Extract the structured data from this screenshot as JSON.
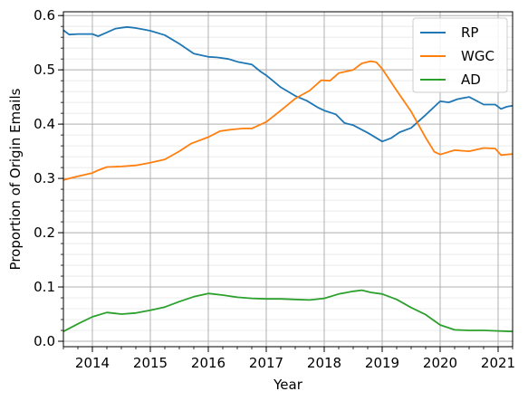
{
  "chart_data": {
    "type": "line",
    "xlabel": "Year",
    "ylabel": "Proportion of Origin Emails",
    "xlim": [
      2013.5,
      2021.25
    ],
    "ylim": [
      -0.01,
      0.607
    ],
    "x_ticks": [
      2014,
      2015,
      2016,
      2017,
      2018,
      2019,
      2020,
      2021
    ],
    "x_tick_labels": [
      "2014",
      "2015",
      "2016",
      "2017",
      "2018",
      "2019",
      "2020",
      "2021"
    ],
    "y_ticks": [
      0.0,
      0.1,
      0.2,
      0.3,
      0.4,
      0.5,
      0.6
    ],
    "y_tick_labels": [
      "0.0",
      "0.1",
      "0.2",
      "0.3",
      "0.4",
      "0.5",
      "0.6"
    ],
    "grid": "major and minor",
    "legend_position": "top-right",
    "series": [
      {
        "name": "RP",
        "color": "#1f77b4",
        "x": [
          2013.5,
          2013.6,
          2013.75,
          2014.0,
          2014.1,
          2014.25,
          2014.4,
          2014.6,
          2014.75,
          2014.9,
          2015.0,
          2015.25,
          2015.5,
          2015.75,
          2016.0,
          2016.15,
          2016.35,
          2016.5,
          2016.75,
          2016.9,
          2017.0,
          2017.25,
          2017.5,
          2017.7,
          2017.9,
          2018.0,
          2018.2,
          2018.35,
          2018.5,
          2018.75,
          2019.0,
          2019.15,
          2019.3,
          2019.5,
          2019.75,
          2020.0,
          2020.15,
          2020.3,
          2020.5,
          2020.75,
          2020.95,
          2021.05,
          2021.15,
          2021.25
        ],
        "y": [
          0.573,
          0.565,
          0.566,
          0.566,
          0.562,
          0.569,
          0.576,
          0.579,
          0.577,
          0.574,
          0.572,
          0.564,
          0.548,
          0.53,
          0.524,
          0.523,
          0.52,
          0.515,
          0.51,
          0.497,
          0.49,
          0.468,
          0.452,
          0.443,
          0.43,
          0.425,
          0.418,
          0.402,
          0.398,
          0.384,
          0.368,
          0.374,
          0.385,
          0.393,
          0.417,
          0.442,
          0.44,
          0.446,
          0.45,
          0.436,
          0.436,
          0.428,
          0.432,
          0.434
        ]
      },
      {
        "name": "WGC",
        "color": "#ff7f0e",
        "x": [
          2013.5,
          2013.6,
          2013.75,
          2014.0,
          2014.1,
          2014.25,
          2014.5,
          2014.75,
          2015.0,
          2015.25,
          2015.5,
          2015.7,
          2016.0,
          2016.2,
          2016.4,
          2016.6,
          2016.75,
          2017.0,
          2017.25,
          2017.5,
          2017.75,
          2017.95,
          2018.1,
          2018.25,
          2018.5,
          2018.65,
          2018.8,
          2018.9,
          2019.0,
          2019.25,
          2019.5,
          2019.75,
          2019.9,
          2020.0,
          2020.25,
          2020.5,
          2020.75,
          2020.95,
          2021.05,
          2021.25
        ],
        "y": [
          0.297,
          0.3,
          0.304,
          0.31,
          0.315,
          0.321,
          0.322,
          0.324,
          0.329,
          0.335,
          0.35,
          0.364,
          0.376,
          0.387,
          0.39,
          0.392,
          0.392,
          0.404,
          0.425,
          0.447,
          0.462,
          0.481,
          0.48,
          0.494,
          0.5,
          0.512,
          0.516,
          0.514,
          0.502,
          0.462,
          0.423,
          0.375,
          0.349,
          0.344,
          0.352,
          0.35,
          0.356,
          0.355,
          0.343,
          0.345
        ]
      },
      {
        "name": "AD",
        "color": "#2ca02c",
        "x": [
          2013.5,
          2013.75,
          2014.0,
          2014.25,
          2014.5,
          2014.75,
          2015.0,
          2015.25,
          2015.5,
          2015.75,
          2016.0,
          2016.25,
          2016.5,
          2016.75,
          2017.0,
          2017.25,
          2017.5,
          2017.75,
          2018.0,
          2018.25,
          2018.5,
          2018.65,
          2018.8,
          2019.0,
          2019.25,
          2019.5,
          2019.75,
          2020.0,
          2020.25,
          2020.5,
          2020.75,
          2021.0,
          2021.25
        ],
        "y": [
          0.018,
          0.032,
          0.045,
          0.053,
          0.05,
          0.052,
          0.057,
          0.063,
          0.073,
          0.082,
          0.088,
          0.085,
          0.081,
          0.079,
          0.078,
          0.078,
          0.077,
          0.076,
          0.079,
          0.087,
          0.092,
          0.094,
          0.09,
          0.087,
          0.077,
          0.062,
          0.049,
          0.03,
          0.021,
          0.02,
          0.02,
          0.019,
          0.018
        ]
      }
    ]
  }
}
